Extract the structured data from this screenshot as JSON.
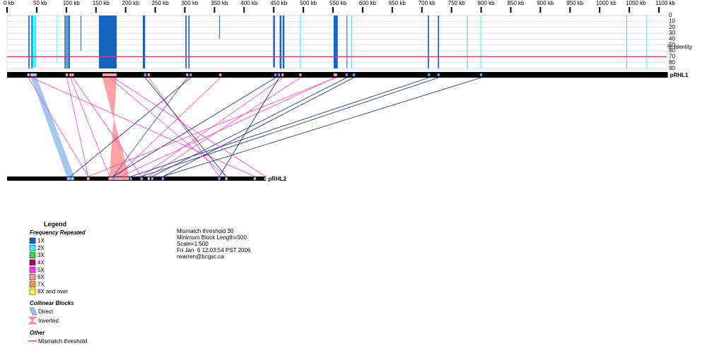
{
  "scale_axis": {
    "lim": [
      0,
      1100
    ],
    "ticks": [
      {
        "value": 0,
        "label": "0 kb"
      },
      {
        "value": 50,
        "label": "50 kb"
      },
      {
        "value": 100,
        "label": "100 kb"
      },
      {
        "value": 150,
        "label": "150 kb"
      },
      {
        "value": 200,
        "label": "200 kb"
      },
      {
        "value": 250,
        "label": "250 kb"
      },
      {
        "value": 300,
        "label": "300 kb"
      },
      {
        "value": 350,
        "label": "350 kb"
      },
      {
        "value": 400,
        "label": "400 kb"
      },
      {
        "value": 450,
        "label": "450 kb"
      },
      {
        "value": 500,
        "label": "500 kb"
      },
      {
        "value": 550,
        "label": "550 kb"
      },
      {
        "value": 600,
        "label": "600 kb"
      },
      {
        "value": 650,
        "label": "650 kb"
      },
      {
        "value": 700,
        "label": "700 kb"
      },
      {
        "value": 750,
        "label": "750 kb"
      },
      {
        "value": 800,
        "label": "800 kb"
      },
      {
        "value": 850,
        "label": "850 kb"
      },
      {
        "value": 900,
        "label": "900 kb"
      },
      {
        "value": 950,
        "label": "950 kb"
      },
      {
        "value": 1000,
        "label": "1000 kb"
      },
      {
        "value": 1050,
        "label": "1050 kb"
      },
      {
        "value": 1100,
        "label": "1100 kb"
      }
    ]
  },
  "identity_axis": {
    "label": "% Identity",
    "lim": [
      0,
      90
    ],
    "ticks": [
      0,
      10,
      20,
      30,
      40,
      50,
      60,
      70,
      80,
      90
    ],
    "threshold": 70,
    "threshold_color": "#e8336b"
  },
  "sequences": [
    {
      "name": "pRHL1",
      "length": 1115
    },
    {
      "name": "pRHL2",
      "length": 437
    }
  ],
  "hits": [
    {
      "start": 36,
      "end": 38,
      "identity": 90,
      "color": "#1565c0"
    },
    {
      "start": 41,
      "end": 43,
      "identity": 90,
      "color": "#1565c0"
    },
    {
      "start": 43,
      "end": 49,
      "identity": 88,
      "color": "#33ffff"
    },
    {
      "start": 84,
      "end": 85,
      "identity": 80,
      "color": "#33ffff"
    },
    {
      "start": 97,
      "end": 99,
      "identity": 90,
      "color": "#1565c0"
    },
    {
      "start": 100,
      "end": 102,
      "identity": 90,
      "color": "#1565c0"
    },
    {
      "start": 103,
      "end": 106,
      "identity": 90,
      "color": "#1565c0"
    },
    {
      "start": 124,
      "end": 125,
      "identity": 60,
      "color": "#1565c0"
    },
    {
      "start": 155,
      "end": 185,
      "identity": 90,
      "color": "#1565c0"
    },
    {
      "start": 229,
      "end": 233,
      "identity": 90,
      "color": "#1565c0"
    },
    {
      "start": 301,
      "end": 303,
      "identity": 90,
      "color": "#1565c0"
    },
    {
      "start": 306,
      "end": 308,
      "identity": 90,
      "color": "#1565c0"
    },
    {
      "start": 358,
      "end": 359,
      "identity": 40,
      "color": "#1565c0"
    },
    {
      "start": 449,
      "end": 452,
      "identity": 88,
      "color": "#1565c0"
    },
    {
      "start": 460,
      "end": 463,
      "identity": 90,
      "color": "#1565c0"
    },
    {
      "start": 465,
      "end": 468,
      "identity": 90,
      "color": "#1565c0"
    },
    {
      "start": 494,
      "end": 495,
      "identity": 90,
      "color": "#33ffff"
    },
    {
      "start": 551,
      "end": 558,
      "identity": 90,
      "color": "#1565c0"
    },
    {
      "start": 573,
      "end": 574,
      "identity": 90,
      "color": "#1565c0"
    },
    {
      "start": 581,
      "end": 582,
      "identity": 90,
      "color": "#33ffff"
    },
    {
      "start": 710,
      "end": 712,
      "identity": 90,
      "color": "#1565c0"
    },
    {
      "start": 727,
      "end": 729,
      "identity": 90,
      "color": "#1565c0"
    },
    {
      "start": 776,
      "end": 777,
      "identity": 90,
      "color": "#88aadd"
    },
    {
      "start": 799,
      "end": 800,
      "identity": 90,
      "color": "#33ffff"
    },
    {
      "start": 1045,
      "end": 1046,
      "identity": 90,
      "color": "#88aadd"
    },
    {
      "start": 1079,
      "end": 1080,
      "identity": 90,
      "color": "#33ffff"
    }
  ],
  "wide_links": [
    {
      "from": [
        41,
        50
      ],
      "to": [
        101,
        113
      ],
      "color": "#99c2f0"
    },
    {
      "from": [
        161,
        185
      ],
      "to": [
        206,
        173
      ],
      "color": "#ff9999"
    }
  ],
  "links": [
    {
      "from": 36,
      "to": 137,
      "color": "#ff44cc"
    },
    {
      "from": 41,
      "to": 418,
      "color": "#ff44cc"
    },
    {
      "from": 101,
      "to": 137,
      "color": "#ff44cc"
    },
    {
      "from": 107,
      "to": 173,
      "color": "#ff44cc"
    },
    {
      "from": 111,
      "to": 227,
      "color": "#ff44cc"
    },
    {
      "from": 239,
      "to": 358,
      "color": "#ff44cc"
    },
    {
      "from": 233,
      "to": 370,
      "color": "#1a237e"
    },
    {
      "from": 304,
      "to": 179,
      "color": "#3355bb"
    },
    {
      "from": 310,
      "to": 107,
      "color": "#1a237e"
    },
    {
      "from": 360,
      "to": 185,
      "color": "#ff44cc"
    },
    {
      "from": 453,
      "to": 179,
      "color": "#1a237e"
    },
    {
      "from": 465,
      "to": 227,
      "color": "#ff44cc"
    },
    {
      "from": 495,
      "to": 239,
      "color": "#ff44cc"
    },
    {
      "from": 555,
      "to": 137,
      "color": "#ff44cc"
    },
    {
      "from": 553,
      "to": 191,
      "color": "#ff44cc"
    },
    {
      "from": 573,
      "to": 245,
      "color": "#1a237e"
    },
    {
      "from": 585,
      "to": 263,
      "color": "#1a237e"
    },
    {
      "from": 712,
      "to": 209,
      "color": "#1a237e"
    },
    {
      "from": 728,
      "to": 227,
      "color": "#1a237e"
    },
    {
      "from": 800,
      "to": 263,
      "color": "#1a237e"
    },
    {
      "from": 459,
      "to": 358,
      "color": "#1a237e"
    },
    {
      "from": 179,
      "to": 436,
      "color": "#ff44cc"
    },
    {
      "from": 173,
      "to": 370,
      "color": "#ff44cc"
    }
  ],
  "legend": {
    "title": "Legend",
    "frequency_title": "Frequency Repeated",
    "frequency": [
      {
        "label": "1X",
        "color": "#1565c0"
      },
      {
        "label": "2X",
        "color": "#33ffff"
      },
      {
        "label": "3X",
        "color": "#33dd33"
      },
      {
        "label": "4X",
        "color": "#aa0077"
      },
      {
        "label": "5X",
        "color": "#ff33ff"
      },
      {
        "label": "6X",
        "color": "#ff9999"
      },
      {
        "label": "7X",
        "color": "#ff9933"
      },
      {
        "label": "8X and over",
        "color": "#ffff33"
      }
    ],
    "blocks_title": "Collinear Blocks",
    "direct": "Direct",
    "inverted": "Inverted",
    "other_title": "Other",
    "mismatch": "Mismatch threshold"
  },
  "info": [
    "Mismatch threshold 30",
    "Minimum Block Length=500",
    "Scale=1:500",
    "Fri Jan  6 12:03:54 PST 2006",
    "rwarren@bcgsc.ca"
  ]
}
